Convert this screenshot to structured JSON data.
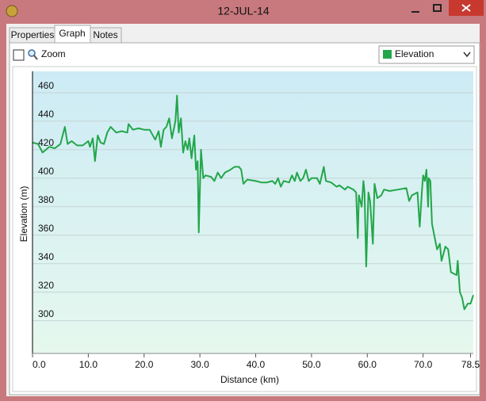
{
  "window": {
    "title": "12-JUL-14"
  },
  "tabs": [
    "Properties",
    "Graph",
    "Notes"
  ],
  "zoom_label": "Zoom",
  "chart_data": {
    "type": "line",
    "x_label": "Distance (km)",
    "y_label": "Elevation (m)",
    "x": [
      0,
      1,
      1.8,
      3,
      4,
      5,
      5.8,
      6.3,
      7,
      8,
      9,
      10,
      10.3,
      10.8,
      11.2,
      11.7,
      12.2,
      12.8,
      13.4,
      14,
      15,
      16,
      17,
      17.2,
      18,
      19,
      20,
      21,
      22,
      22.6,
      23,
      23.5,
      24,
      24.5,
      25,
      25.6,
      25.9,
      26.2,
      26.6,
      27,
      27.4,
      27.8,
      28.1,
      28.5,
      29,
      29.3,
      29.6,
      29.8,
      30.2,
      30.6,
      31,
      32,
      32.6,
      33.2,
      33.8,
      34.5,
      35.5,
      36.2,
      37,
      37.4,
      37.8,
      38.5,
      40,
      41,
      42,
      43,
      43.5,
      44,
      44.5,
      45,
      46,
      46.5,
      47,
      47.4,
      48,
      48.5,
      49,
      49.5,
      50,
      51,
      51.5,
      52.2,
      52.6,
      53.5,
      54.5,
      55,
      56,
      56.5,
      57.5,
      58,
      58.3,
      58.5,
      59,
      59.3,
      59.5,
      59.8,
      60.2,
      60.5,
      61,
      61.3,
      61.8,
      62.5,
      63,
      64,
      65.5,
      67,
      67.5,
      68,
      69,
      69.4,
      69.8,
      70,
      70.3,
      70.6,
      70.9,
      71,
      71.3,
      71.6,
      72,
      72.5,
      73,
      73.3,
      74,
      74.5,
      75,
      76,
      76.2,
      76.6,
      77,
      77.4,
      78,
      78.5,
      79
    ],
    "series": [
      {
        "name": "Elevation",
        "color": "#22a64a",
        "values": [
          425,
          424,
          418,
          422,
          421,
          424,
          436,
          424,
          426,
          423,
          423,
          426,
          422,
          428,
          412,
          430,
          425,
          424,
          432,
          436,
          432,
          433,
          432,
          438,
          434,
          435,
          434,
          434,
          427,
          433,
          422,
          434,
          436,
          442,
          428,
          440,
          458,
          432,
          442,
          418,
          426,
          420,
          428,
          414,
          430,
          406,
          412,
          362,
          420,
          400,
          402,
          401,
          398,
          404,
          400,
          404,
          406,
          408,
          408,
          406,
          396,
          399,
          398,
          397,
          397,
          398,
          396,
          400,
          394,
          398,
          397,
          402,
          398,
          404,
          398,
          400,
          406,
          398,
          400,
          400,
          396,
          408,
          398,
          397,
          394,
          395,
          392,
          394,
          392,
          390,
          358,
          388,
          380,
          398,
          390,
          338,
          390,
          384,
          354,
          396,
          386,
          388,
          392,
          391,
          392,
          393,
          384,
          388,
          390,
          366,
          392,
          402,
          398,
          406,
          380,
          400,
          398,
          368,
          360,
          350,
          354,
          342,
          352,
          350,
          334,
          332,
          342,
          320,
          316,
          308,
          312,
          312,
          318
        ]
      }
    ],
    "xlim": [
      0,
      79
    ],
    "ylim": [
      277,
      475
    ],
    "xticks": [
      {
        "value": 0,
        "label": "0.0"
      },
      {
        "value": 10,
        "label": "10.0"
      },
      {
        "value": 20,
        "label": "20.0"
      },
      {
        "value": 30,
        "label": "30.0"
      },
      {
        "value": 40,
        "label": "40.0"
      },
      {
        "value": 50,
        "label": "50.0"
      },
      {
        "value": 60,
        "label": "60.0"
      },
      {
        "value": 70,
        "label": "70.0"
      },
      78.5
    ],
    "yticks": [
      300,
      320,
      340,
      360,
      380,
      400,
      420,
      440,
      460
    ],
    "grid": true
  }
}
